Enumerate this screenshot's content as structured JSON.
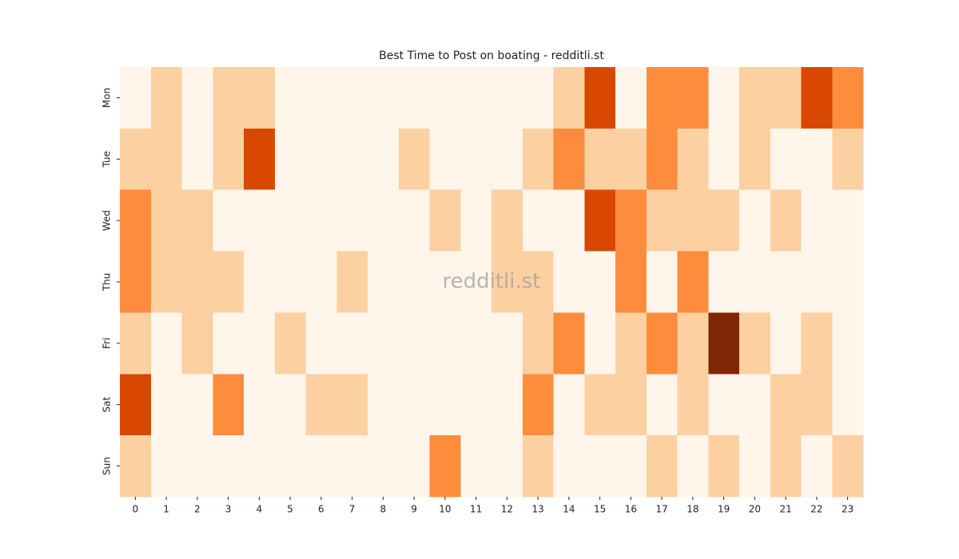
{
  "chart_data": {
    "type": "heatmap",
    "title": "Best Time to Post on boating - redditli.st",
    "watermark": "redditli.st",
    "columns": [
      0,
      1,
      2,
      3,
      4,
      5,
      6,
      7,
      8,
      9,
      10,
      11,
      12,
      13,
      14,
      15,
      16,
      17,
      18,
      19,
      20,
      21,
      22,
      23
    ],
    "rows": [
      "Mon",
      "Tue",
      "Wed",
      "Thu",
      "Fri",
      "Sat",
      "Sun"
    ],
    "colors": [
      "#fff5eb",
      "#fdd0a2",
      "#fd8d3c",
      "#d94801",
      "#7f2704"
    ],
    "values": [
      [
        0,
        1,
        0,
        1,
        1,
        0,
        0,
        0,
        0,
        0,
        0,
        0,
        0,
        0,
        1,
        3,
        0,
        2,
        2,
        0,
        1,
        1,
        3,
        2
      ],
      [
        1,
        1,
        0,
        1,
        3,
        0,
        0,
        0,
        0,
        1,
        0,
        0,
        0,
        1,
        2,
        1,
        1,
        2,
        1,
        0,
        1,
        0,
        0,
        1
      ],
      [
        2,
        1,
        1,
        0,
        0,
        0,
        0,
        0,
        0,
        0,
        1,
        0,
        1,
        0,
        0,
        3,
        2,
        1,
        1,
        1,
        0,
        1,
        0,
        0
      ],
      [
        2,
        1,
        1,
        1,
        0,
        0,
        0,
        1,
        0,
        0,
        0,
        0,
        1,
        1,
        0,
        0,
        2,
        0,
        2,
        0,
        0,
        0,
        0,
        0
      ],
      [
        1,
        0,
        1,
        0,
        0,
        1,
        0,
        0,
        0,
        0,
        0,
        0,
        0,
        1,
        2,
        0,
        1,
        2,
        1,
        4,
        1,
        0,
        1,
        0
      ],
      [
        3,
        0,
        0,
        2,
        0,
        0,
        1,
        1,
        0,
        0,
        0,
        0,
        0,
        2,
        0,
        1,
        1,
        0,
        1,
        0,
        0,
        1,
        1,
        0
      ],
      [
        1,
        0,
        0,
        0,
        0,
        0,
        0,
        0,
        0,
        0,
        2,
        0,
        0,
        1,
        0,
        0,
        0,
        1,
        0,
        1,
        0,
        1,
        0,
        1
      ]
    ]
  }
}
